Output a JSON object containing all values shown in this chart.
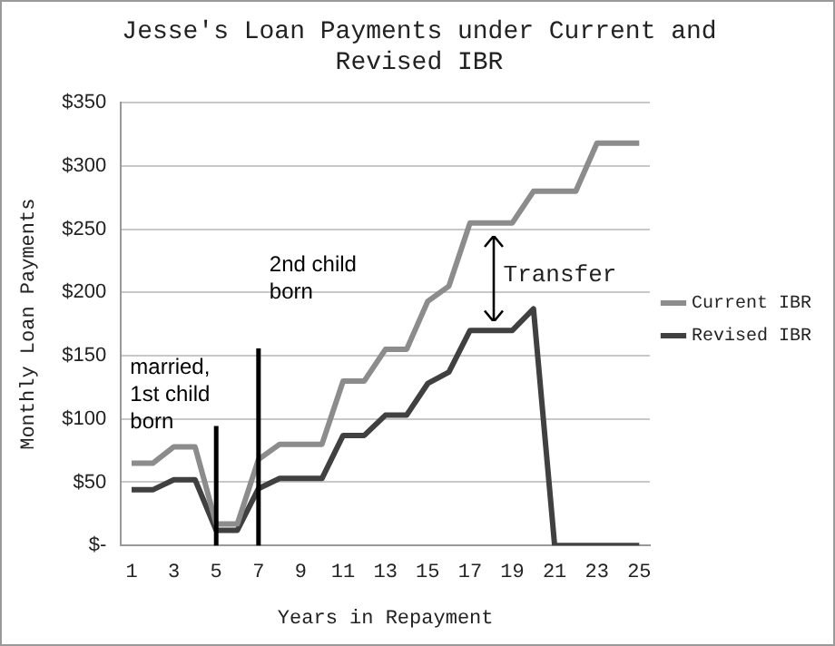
{
  "chart_data": {
    "type": "line",
    "title": "Jesse's Loan Payments under Current and Revised IBR",
    "xlabel": "Years in Repayment",
    "ylabel": "Monthly Loan Payments",
    "x": [
      1,
      2,
      3,
      4,
      5,
      6,
      7,
      8,
      9,
      10,
      11,
      12,
      13,
      14,
      15,
      16,
      17,
      18,
      19,
      20,
      21,
      22,
      23,
      24,
      25
    ],
    "xlim": [
      0.5,
      25.5
    ],
    "xticks": [
      1,
      3,
      5,
      7,
      9,
      11,
      13,
      15,
      17,
      19,
      21,
      23,
      25
    ],
    "series": [
      {
        "name": "Current IBR",
        "color": "#8c8c8c",
        "values": [
          65,
          65,
          78,
          78,
          17,
          17,
          68,
          80,
          80,
          80,
          130,
          130,
          155,
          155,
          193,
          205,
          255,
          255,
          255,
          280,
          280,
          280,
          318,
          318,
          318
        ]
      },
      {
        "name": "Revised IBR",
        "color": "#404040",
        "values": [
          44,
          44,
          52,
          52,
          12,
          12,
          45,
          53,
          53,
          53,
          87,
          87,
          103,
          103,
          128,
          137,
          170,
          170,
          170,
          187,
          0,
          0,
          0,
          0,
          0
        ]
      }
    ],
    "ylim": [
      0,
      350
    ],
    "yticks": [
      {
        "value": 0,
        "label": "$-"
      },
      {
        "value": 50,
        "label": "$50"
      },
      {
        "value": 100,
        "label": "$100"
      },
      {
        "value": 150,
        "label": "$150"
      },
      {
        "value": 200,
        "label": "$200"
      },
      {
        "value": 250,
        "label": "$250"
      },
      {
        "value": 300,
        "label": "$300"
      },
      {
        "value": 350,
        "label": "$350"
      }
    ],
    "grid": "y",
    "legend": "right",
    "marker": "none",
    "line_style": "solid",
    "ref_lines": [
      {
        "axis": "x",
        "value": 5,
        "label": "married, 1st child born",
        "color": "#000000"
      },
      {
        "axis": "x",
        "value": 7,
        "label": "2nd child born",
        "color": "#000000"
      }
    ],
    "annotations": [
      "Transfer"
    ]
  }
}
